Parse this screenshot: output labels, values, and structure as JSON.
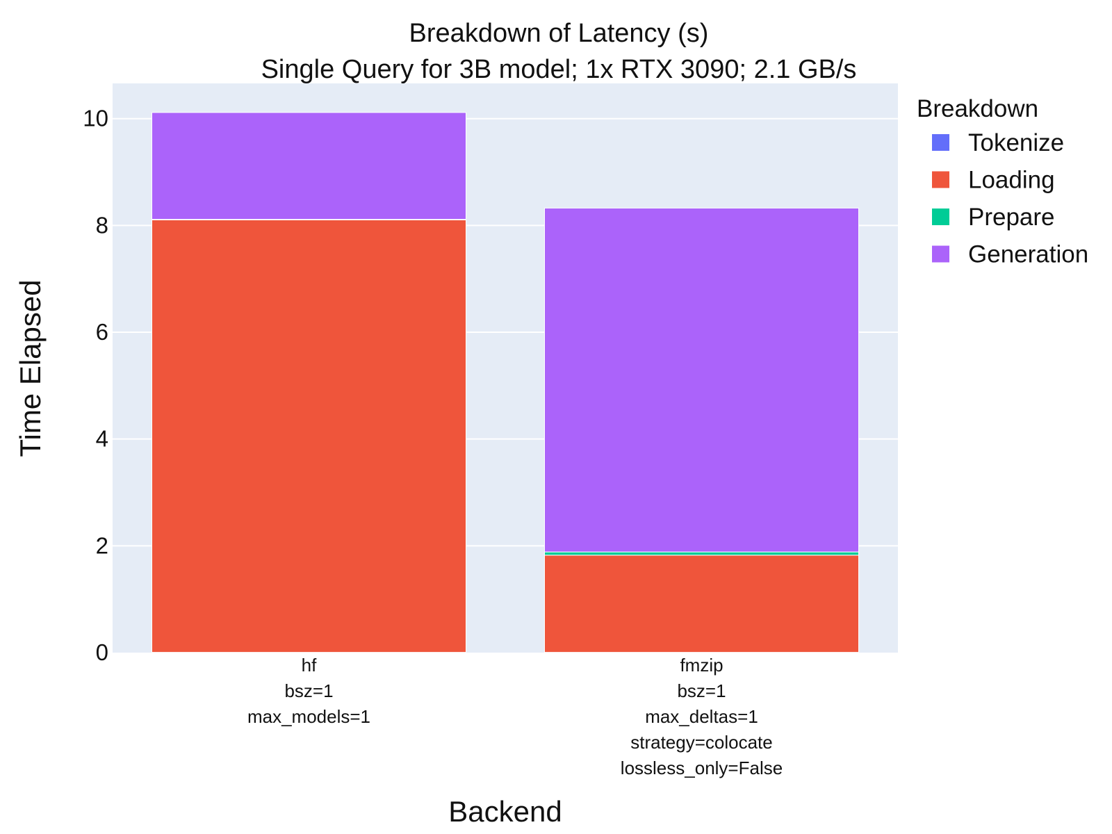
{
  "chart_data": {
    "type": "bar",
    "stacked": true,
    "title": "Breakdown of Latency (s)",
    "subtitle": "Single Query for 3B model; 1x RTX 3090; 2.1 GB/s",
    "xlabel": "Backend",
    "ylabel": "Time Elapsed",
    "ylim": [
      0,
      10.66
    ],
    "yticks": [
      0,
      2,
      4,
      6,
      8,
      10
    ],
    "grid": true,
    "legend_title": "Breakdown",
    "legend_position": "right",
    "categories": [
      [
        "hf",
        "bsz=1",
        "max_models=1"
      ],
      [
        "fmzip",
        "bsz=1",
        "max_deltas=1",
        "strategy=colocate",
        "lossless_only=False"
      ]
    ],
    "series": [
      {
        "name": "Tokenize",
        "color": "#636efa",
        "values": [
          0.005,
          0.005
        ]
      },
      {
        "name": "Loading",
        "color": "#ef553b",
        "values": [
          8.1,
          1.82
        ]
      },
      {
        "name": "Prepare",
        "color": "#00cc96",
        "values": [
          0.01,
          0.06
        ]
      },
      {
        "name": "Generation",
        "color": "#ab63fa",
        "values": [
          2.0,
          6.44
        ]
      }
    ]
  }
}
